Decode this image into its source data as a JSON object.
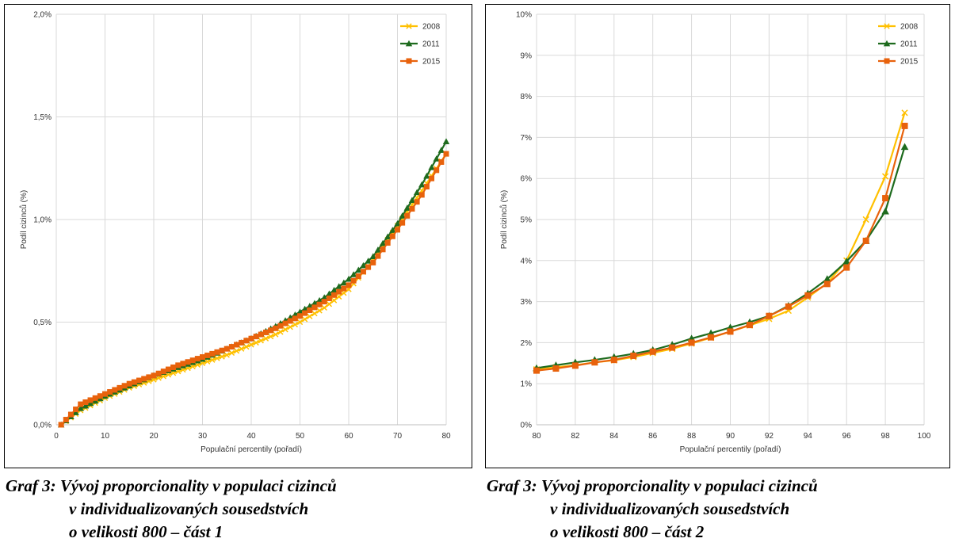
{
  "colors": {
    "2008": "#ffc000",
    "2011": "#1e6b1e",
    "2015": "#e8620c"
  },
  "chart_data": [
    {
      "type": "line",
      "xlabel": "Populační percentily (pořadí)",
      "ylabel": "Podíl cizinců (%)",
      "xlim": [
        0,
        80
      ],
      "ylim": [
        0,
        2.0
      ],
      "xticks": [
        "0",
        "10",
        "20",
        "30",
        "40",
        "50",
        "60",
        "70",
        "80"
      ],
      "yticks": [
        "0,0%",
        "0,5%",
        "1,0%",
        "1,5%",
        "2,0%"
      ],
      "grid": true,
      "legend": "top-right",
      "series": [
        {
          "name": "2008",
          "marker": "x",
          "x": [
            1,
            5,
            10,
            15,
            20,
            25,
            30,
            35,
            40,
            45,
            50,
            55,
            60,
            65,
            70,
            75,
            80
          ],
          "values": [
            0.0,
            0.07,
            0.13,
            0.18,
            0.22,
            0.26,
            0.3,
            0.34,
            0.39,
            0.44,
            0.5,
            0.57,
            0.66,
            0.8,
            0.97,
            1.14,
            1.32
          ]
        },
        {
          "name": "2011",
          "marker": "triangle",
          "x": [
            1,
            5,
            10,
            15,
            20,
            25,
            30,
            35,
            40,
            45,
            50,
            55,
            60,
            65,
            70,
            75,
            80
          ],
          "values": [
            0.0,
            0.08,
            0.14,
            0.19,
            0.24,
            0.28,
            0.32,
            0.37,
            0.42,
            0.48,
            0.55,
            0.62,
            0.71,
            0.82,
            0.98,
            1.17,
            1.38
          ]
        },
        {
          "name": "2015",
          "marker": "square",
          "x": [
            1,
            5,
            10,
            15,
            20,
            25,
            30,
            35,
            40,
            45,
            50,
            55,
            60,
            65,
            70,
            75,
            80
          ],
          "values": [
            0.0,
            0.1,
            0.15,
            0.2,
            0.24,
            0.29,
            0.33,
            0.37,
            0.42,
            0.47,
            0.53,
            0.6,
            0.68,
            0.79,
            0.95,
            1.12,
            1.32
          ]
        }
      ]
    },
    {
      "type": "line",
      "xlabel": "Populační percentily (pořadí)",
      "ylabel": "Podíl cizinců (%)",
      "xlim": [
        80,
        100
      ],
      "ylim": [
        0,
        10
      ],
      "xticks": [
        "80",
        "82",
        "84",
        "86",
        "88",
        "90",
        "92",
        "94",
        "96",
        "98",
        "100"
      ],
      "yticks": [
        "0%",
        "1%",
        "2%",
        "3%",
        "4%",
        "5%",
        "6%",
        "7%",
        "8%",
        "9%",
        "10%"
      ],
      "grid": true,
      "legend": "top-right",
      "series": [
        {
          "name": "2008",
          "marker": "x",
          "x": [
            80,
            81,
            82,
            83,
            84,
            85,
            86,
            87,
            88,
            89,
            90,
            91,
            92,
            93,
            94,
            95,
            96,
            97,
            98,
            99
          ],
          "values": [
            1.35,
            1.4,
            1.45,
            1.52,
            1.57,
            1.65,
            1.75,
            1.85,
            1.98,
            2.12,
            2.27,
            2.42,
            2.58,
            2.78,
            3.1,
            3.45,
            4.0,
            5.0,
            6.05,
            7.6
          ]
        },
        {
          "name": "2011",
          "marker": "triangle",
          "x": [
            80,
            81,
            82,
            83,
            84,
            85,
            86,
            87,
            88,
            89,
            90,
            91,
            92,
            93,
            94,
            95,
            96,
            97,
            98,
            99
          ],
          "values": [
            1.38,
            1.45,
            1.52,
            1.58,
            1.65,
            1.73,
            1.82,
            1.95,
            2.1,
            2.23,
            2.37,
            2.5,
            2.65,
            2.9,
            3.2,
            3.55,
            3.98,
            4.48,
            5.2,
            6.77
          ]
        },
        {
          "name": "2015",
          "marker": "square",
          "x": [
            80,
            81,
            82,
            83,
            84,
            85,
            86,
            87,
            88,
            89,
            90,
            91,
            92,
            93,
            94,
            95,
            96,
            97,
            98,
            99
          ],
          "values": [
            1.32,
            1.37,
            1.44,
            1.52,
            1.58,
            1.68,
            1.78,
            1.88,
            2.0,
            2.13,
            2.27,
            2.43,
            2.65,
            2.88,
            3.15,
            3.43,
            3.83,
            4.48,
            5.52,
            7.28
          ]
        }
      ]
    }
  ],
  "captions": [
    {
      "line1": "Graf 3: Vývoj proporcionality v populaci cizinců",
      "line2": "v individualizovaných sousedstvích",
      "line3": "o velikosti 800 – část 1"
    },
    {
      "line1": "Graf 3: Vývoj proporcionality v populaci cizinců",
      "line2": "v individualizovaných sousedstvích",
      "line3": "o velikosti 800 – část 2"
    }
  ]
}
